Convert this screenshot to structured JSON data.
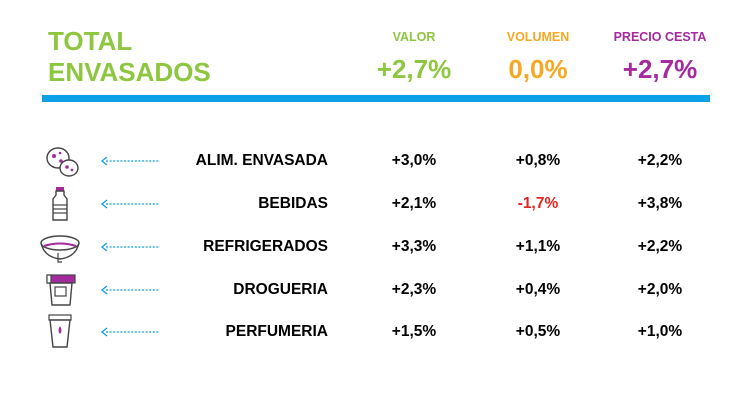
{
  "header": {
    "title_line1": "TOTAL",
    "title_line2": "ENVASADOS"
  },
  "colors": {
    "title": "#8dc63f",
    "valor": "#8dc63f",
    "volumen": "#f7a823",
    "precio_cesta": "#a52a9e",
    "rule": "#0ca0e8",
    "negative": "#e52421",
    "arrow": "#0ca0e8"
  },
  "chart_data": {
    "type": "table",
    "columns": [
      {
        "key": "valor",
        "label": "VALOR",
        "total": "+2,7%"
      },
      {
        "key": "volumen",
        "label": "VOLUMEN",
        "total": "0,0%"
      },
      {
        "key": "precio_cesta",
        "label": "PRECIO CESTA",
        "total": "+2,7%"
      }
    ],
    "rows": [
      {
        "category": "ALIM. ENVASADA",
        "icon": "cookies-icon",
        "values": [
          "+3,0%",
          "+0,8%",
          "+2,2%"
        ]
      },
      {
        "category": "BEBIDAS",
        "icon": "bottle-icon",
        "values": [
          "+2,1%",
          "-1,7%",
          "+3,8%"
        ]
      },
      {
        "category": "REFRIGERADOS",
        "icon": "yogurt-cup-icon",
        "values": [
          "+3,3%",
          "+1,1%",
          "+2,2%"
        ]
      },
      {
        "category": "DROGUERIA",
        "icon": "detergent-icon",
        "values": [
          "+2,3%",
          "+0,4%",
          "+2,0%"
        ]
      },
      {
        "category": "PERFUMERIA",
        "icon": "cream-tube-icon",
        "values": [
          "+1,5%",
          "+0,5%",
          "+1,0%"
        ]
      }
    ]
  }
}
